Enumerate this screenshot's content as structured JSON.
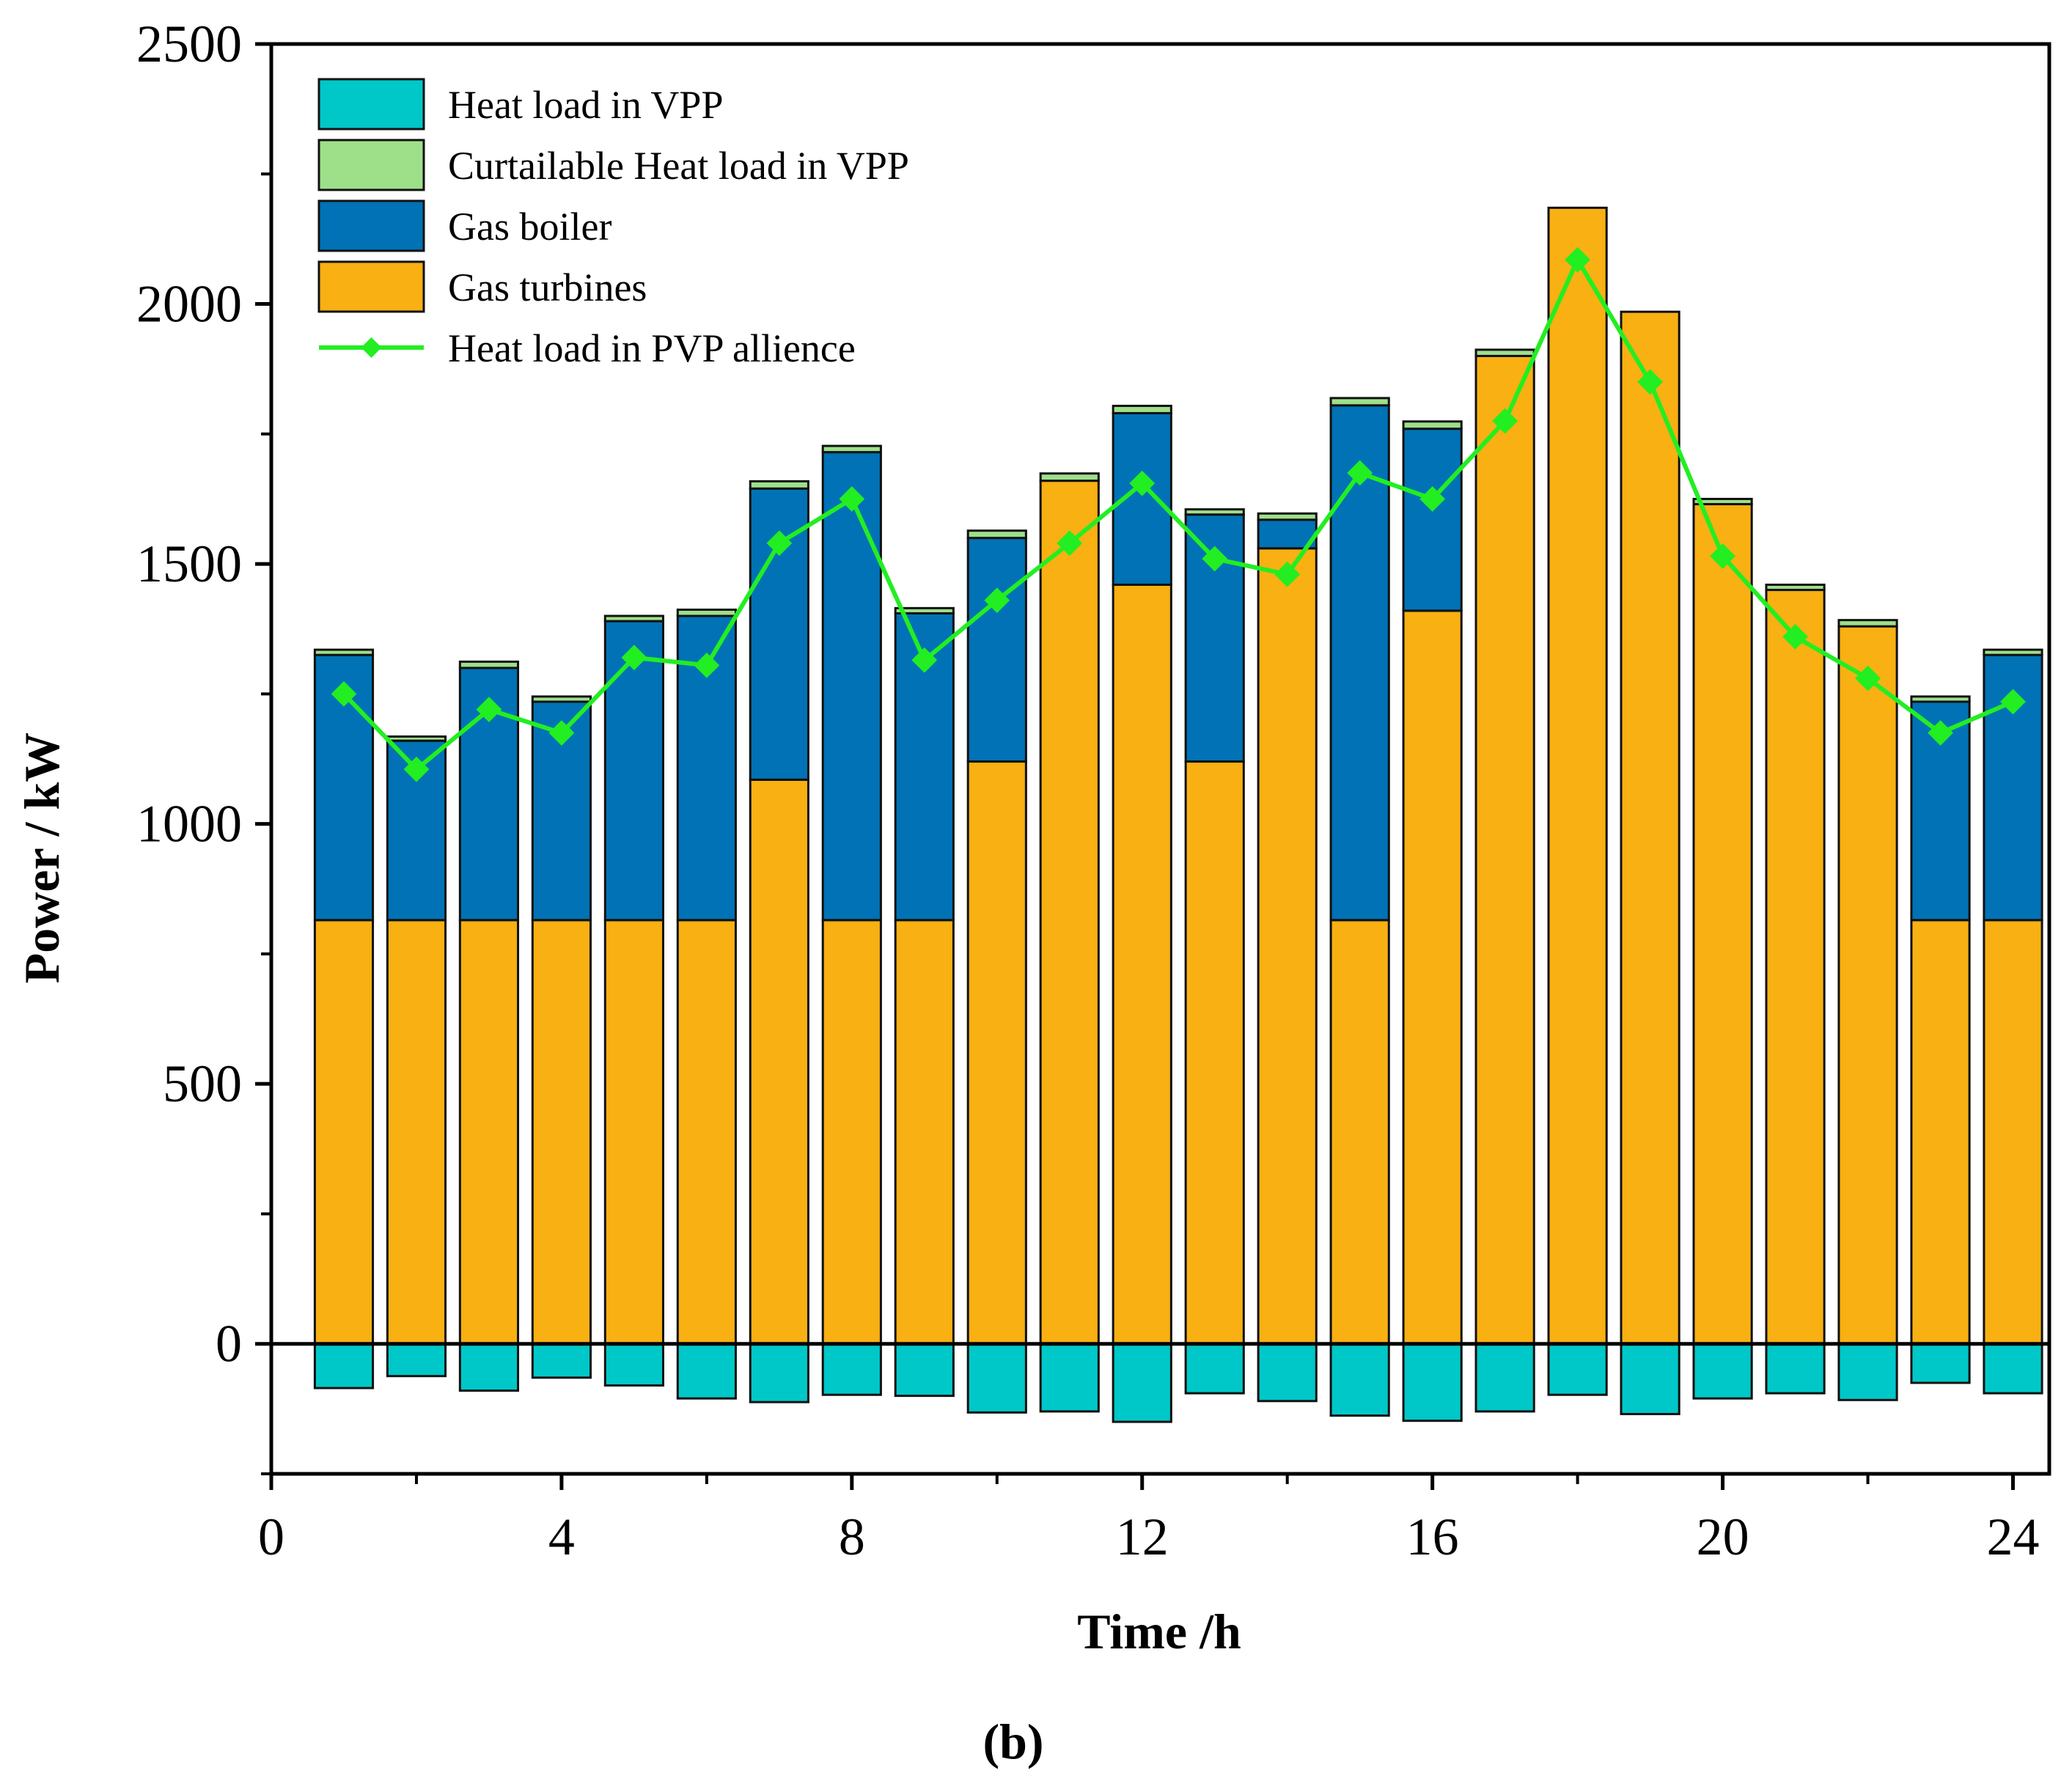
{
  "chart_data": {
    "type": "bar",
    "stacked": true,
    "xlabel": "Time /h",
    "ylabel": "Power / kW",
    "caption": "(b)",
    "xlim": [
      0,
      24.5
    ],
    "ylim": [
      -250,
      2500
    ],
    "xticks": [
      0,
      4,
      8,
      12,
      16,
      20,
      24
    ],
    "xtick_labels": [
      "0",
      "4",
      "8",
      "12",
      "16",
      "20",
      "24"
    ],
    "yticks": [
      0,
      500,
      1000,
      1500,
      2000,
      2500
    ],
    "ytick_labels": [
      "0",
      "500",
      "1000",
      "1500",
      "2000",
      "2500"
    ],
    "yticks_minor": [
      -250,
      250,
      750,
      1250,
      1750,
      2250
    ],
    "x": [
      1,
      2,
      3,
      4,
      5,
      6,
      7,
      8,
      9,
      10,
      11,
      12,
      13,
      14,
      15,
      16,
      17,
      18,
      19,
      20,
      21,
      22,
      23,
      24
    ],
    "legend_position": "top-left",
    "series": [
      {
        "name": "Heat load in VPP",
        "kind": "bar",
        "color": "#00c8c8",
        "values": [
          -85,
          -62,
          -90,
          -65,
          -80,
          -105,
          -112,
          -98,
          -100,
          -132,
          -130,
          -150,
          -95,
          -110,
          -138,
          -148,
          -130,
          -98,
          -135,
          -105,
          -95,
          -108,
          -75,
          -95
        ]
      },
      {
        "name": "Curtailable Heat load in VPP",
        "label": "Curtailable Heat load in VPP",
        "kind": "bar",
        "color": "#9ee08a",
        "values": [
          10,
          8,
          12,
          10,
          10,
          12,
          14,
          12,
          10,
          14,
          14,
          14,
          10,
          12,
          14,
          14,
          12,
          0,
          0,
          10,
          10,
          12,
          10,
          10
        ]
      },
      {
        "name": "Gas boiler",
        "kind": "bar",
        "color": "#0072b5",
        "values": [
          510,
          345,
          485,
          420,
          575,
          585,
          560,
          900,
          590,
          430,
          0,
          330,
          475,
          55,
          990,
          350,
          0,
          0,
          0,
          0,
          0,
          0,
          420,
          510
        ]
      },
      {
        "name": "Gas turbines",
        "kind": "bar",
        "color": "#f8b012",
        "values": [
          815,
          815,
          815,
          815,
          815,
          815,
          1085,
          815,
          815,
          1120,
          1660,
          1460,
          1120,
          1530,
          815,
          1410,
          1900,
          2185,
          1985,
          1615,
          1450,
          1380,
          815,
          815
        ]
      },
      {
        "name": "Heat load in PVP allience",
        "kind": "line",
        "color": "#22ee22",
        "marker": "diamond",
        "values": [
          1250,
          1105,
          1220,
          1175,
          1320,
          1305,
          1540,
          1625,
          1315,
          1430,
          1540,
          1655,
          1510,
          1480,
          1675,
          1625,
          1775,
          2085,
          1850,
          1515,
          1360,
          1280,
          1175,
          1235
        ]
      }
    ]
  },
  "legend": {
    "items": [
      {
        "label": "Heat load in VPP",
        "color": "#00c8c8",
        "kind": "box"
      },
      {
        "label": "Curtailable Heat load in VPP",
        "color": "#9ee08a",
        "kind": "box"
      },
      {
        "label": "Gas boiler",
        "color": "#0072b5",
        "kind": "box"
      },
      {
        "label": "Gas turbines",
        "color": "#f8b012",
        "kind": "box"
      },
      {
        "label": "Heat load in PVP allience",
        "color": "#22ee22",
        "kind": "line"
      }
    ]
  }
}
